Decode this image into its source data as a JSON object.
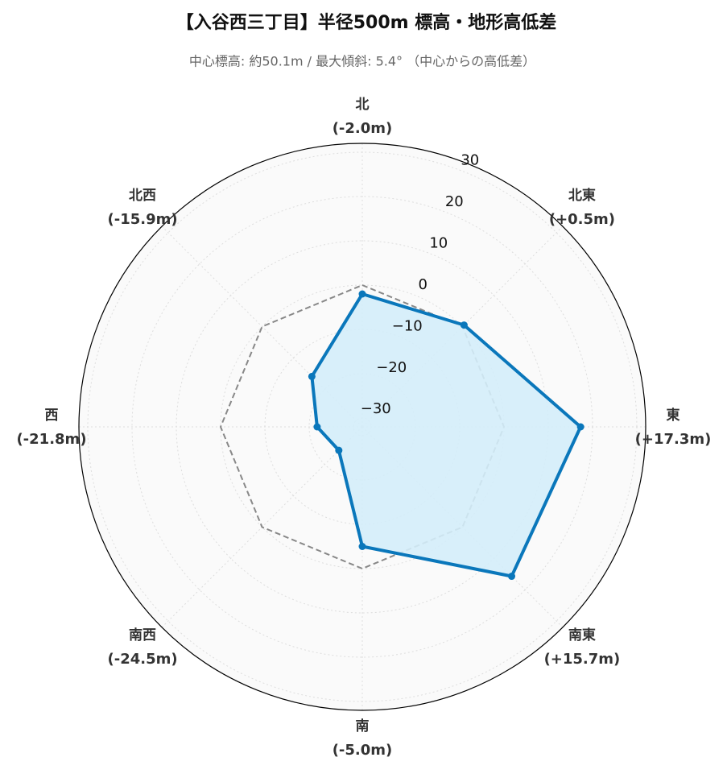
{
  "chart_data": {
    "type": "radar",
    "title": "【入谷西三丁目】半径500m 標高・地形高低差",
    "subtitle": "中心標高: 約50.1m / 最大傾斜: 5.4° （中心からの高低差）",
    "categories": [
      "北",
      "北東",
      "東",
      "南東",
      "南",
      "南西",
      "西",
      "北西"
    ],
    "values": [
      -2.0,
      0.5,
      17.3,
      15.7,
      -5.0,
      -24.5,
      -21.8,
      -15.9
    ],
    "value_labels": [
      "(-2.0m)",
      "(+0.5m)",
      "(+17.3m)",
      "(+15.7m)",
      "(-5.0m)",
      "(-24.5m)",
      "(-21.8m)",
      "(-15.9m)"
    ],
    "color": "#0a77bb",
    "fill": "#d4edf9",
    "rlim": [
      -32,
      32
    ],
    "rticks": [
      {
        "value": -30,
        "label": "−30"
      },
      {
        "value": -20,
        "label": "−20"
      },
      {
        "value": -10,
        "label": "−10"
      },
      0,
      10,
      20,
      30
    ],
    "reference": 0,
    "grid": true
  }
}
